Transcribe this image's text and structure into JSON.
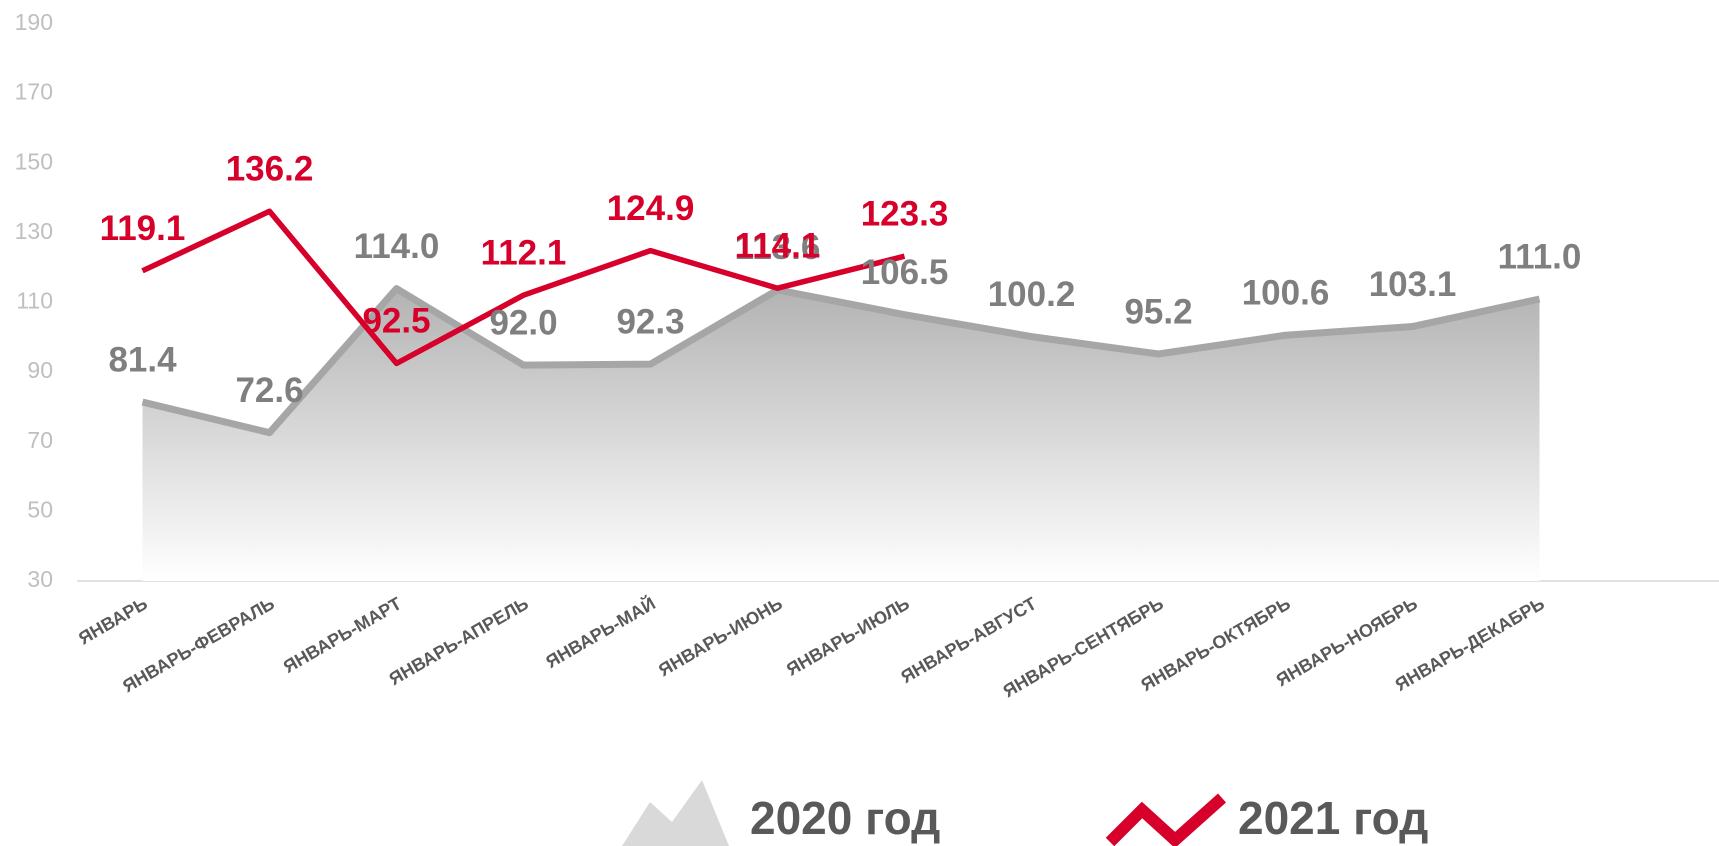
{
  "chart_data": {
    "type": "line",
    "categories": [
      "ЯНВАРЬ",
      "ЯНВАРЬ-ФЕВРАЛЬ",
      "ЯНВАРЬ-МАРТ",
      "ЯНВАРЬ-АПРЕЛЬ",
      "ЯНВАРЬ-МАЙ",
      "ЯНВАРЬ-ИЮНЬ",
      "ЯНВАРЬ-ИЮЛЬ",
      "ЯНВАРЬ-АВГУСТ",
      "ЯНВАРЬ-СЕНТЯБРЬ",
      "ЯНВАРЬ-ОКТЯБРЬ",
      "ЯНВАРЬ-НОЯБРЬ",
      "ЯНВАРЬ-ДЕКАБРЬ"
    ],
    "series": [
      {
        "name": "2020 год",
        "color": "#a6a6a6",
        "area": true,
        "label_color": "#7f7f7f",
        "values": [
          81.4,
          72.6,
          114.0,
          92.0,
          92.3,
          113.6,
          106.5,
          100.2,
          95.2,
          100.6,
          103.1,
          111.0
        ],
        "value_labels": [
          "81.4",
          "72.6",
          "114.0",
          "92.0",
          "92.3",
          "113.6",
          "106.5",
          "100.2",
          "95.2",
          "100.6",
          "103.1",
          "111.0"
        ]
      },
      {
        "name": "2021 год",
        "color": "#d6002a",
        "label_color": "#d6002a",
        "values": [
          119.1,
          136.2,
          92.5,
          112.1,
          124.9,
          114.1,
          123.3,
          null,
          null,
          null,
          null,
          null
        ],
        "value_labels": [
          "119.1",
          "136.2",
          "92.5",
          "112.1",
          "124.9",
          "114.1",
          "123.3",
          null,
          null,
          null,
          null,
          null
        ]
      }
    ],
    "ylim": [
      30,
      190
    ],
    "yticks": [
      30,
      50,
      70,
      90,
      110,
      130,
      150,
      170,
      190
    ],
    "grid": false,
    "legend": "bottom"
  }
}
